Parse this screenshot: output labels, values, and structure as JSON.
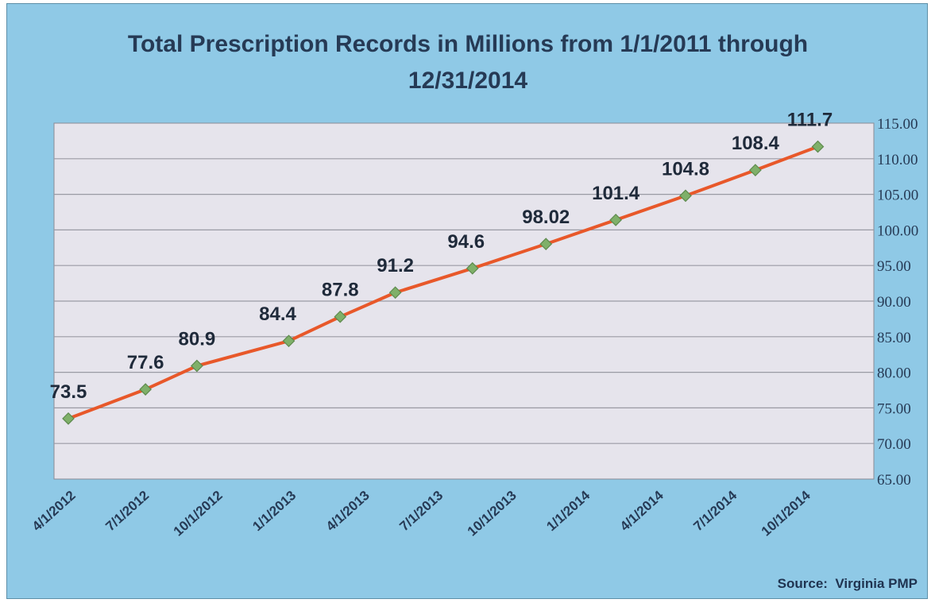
{
  "chart_data": {
    "type": "line",
    "title_line1": "Total Prescription Records in Millions from 1/1/2011 through",
    "title_line2": "12/31/2014",
    "source": "Source:  Virginia PMP",
    "categories": [
      "4/1/2012",
      "7/1/2012",
      "10/1/2012",
      "1/1/2013",
      "4/1/2013",
      "7/1/2013",
      "10/1/2013",
      "1/1/2014",
      "4/1/2014",
      "7/1/2014",
      "10/1/2014"
    ],
    "x": [
      0,
      1.05,
      1.75,
      3.0,
      3.7,
      4.45,
      5.5,
      6.5,
      7.45,
      8.4,
      9.35,
      10.2
    ],
    "values": [
      73.5,
      77.6,
      80.9,
      84.4,
      87.8,
      91.2,
      94.6,
      98.02,
      101.4,
      104.8,
      108.4,
      111.7
    ],
    "data_labels": [
      "73.5",
      "77.6",
      "80.9",
      "84.4",
      "87.8",
      "91.2",
      "94.6",
      "98.02",
      "101.4",
      "104.8",
      "108.4",
      "111.7"
    ],
    "ylim": [
      65,
      115
    ],
    "yticks": [
      "65.00",
      "70.00",
      "75.00",
      "80.00",
      "85.00",
      "90.00",
      "95.00",
      "100.00",
      "105.00",
      "110.00",
      "115.00"
    ],
    "ylabel": "",
    "xlabel": "",
    "y_axis_side": "right",
    "grid": true,
    "legend": "none",
    "colors": {
      "background": "#8fc9e6",
      "plot_area": "#e6e4ec",
      "gridline": "#9a9aa4",
      "line": "#e8582a",
      "marker_fill": "#7fb069",
      "marker_edge": "#5e8a4e",
      "text": "#263a55"
    }
  }
}
